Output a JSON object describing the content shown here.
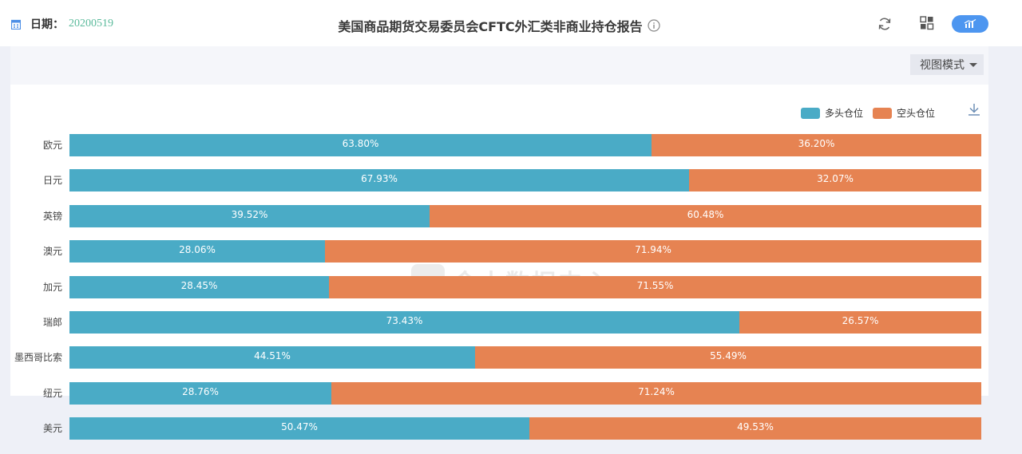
{
  "header": {
    "date_label": "日期：",
    "date_value": "20200519",
    "title": "美国商品期货交易委员会CFTC外汇类非商业持仓报告"
  },
  "icons": {
    "calendar": "calendar-icon",
    "info": "info-icon",
    "refresh": "refresh-icon",
    "grid": "grid-view-icon",
    "chart": "chart-view-icon",
    "download": "download-icon"
  },
  "view_mode": {
    "label": "视图模式"
  },
  "watermark": {
    "text": "金十数据中心"
  },
  "colors": {
    "long": "#4aabc6",
    "short": "#e68352",
    "accent": "#4d96f0",
    "date": "#5aba9b"
  },
  "chart_data": {
    "type": "bar",
    "orientation": "horizontal",
    "stacked": true,
    "categories": [
      "欧元",
      "日元",
      "英镑",
      "澳元",
      "加元",
      "瑞郎",
      "墨西哥比索",
      "纽元",
      "美元"
    ],
    "series": [
      {
        "name": "多头仓位",
        "values": [
          63.8,
          67.93,
          39.52,
          28.06,
          28.45,
          73.43,
          44.51,
          28.76,
          50.47
        ]
      },
      {
        "name": "空头仓位",
        "values": [
          36.2,
          32.07,
          60.48,
          71.94,
          71.55,
          26.57,
          55.49,
          71.24,
          49.53
        ]
      }
    ],
    "value_suffix": "%",
    "xlim": [
      0,
      100
    ],
    "legend_position": "top-right",
    "grid": false
  }
}
